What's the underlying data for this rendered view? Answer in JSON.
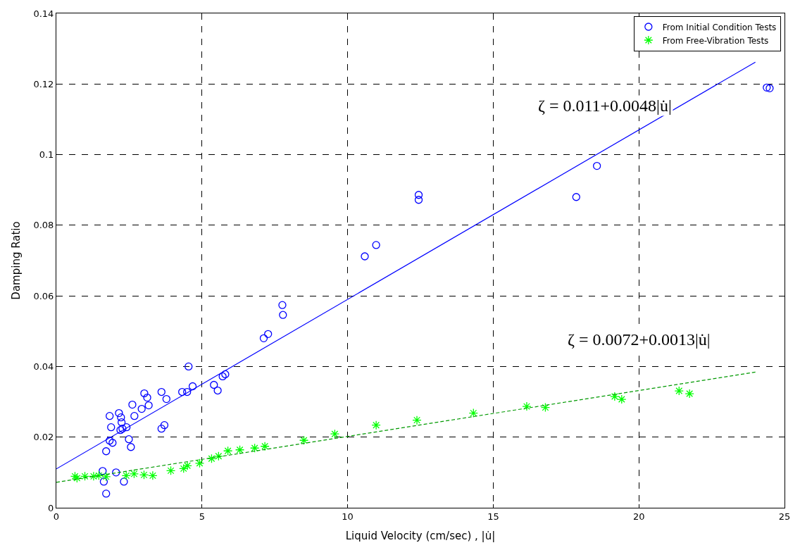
{
  "chart_data": {
    "type": "scatter",
    "xlabel": "Liquid Velocity (cm/sec) , |u̇|",
    "ylabel": "Damping Ratio",
    "xlim": [
      0,
      25
    ],
    "xticks": [
      0,
      5,
      10,
      15,
      20,
      25
    ],
    "ylim": [
      0,
      0.14
    ],
    "yticks": [
      0,
      0.02,
      0.04,
      0.06,
      0.08,
      0.1,
      0.12,
      0.14
    ],
    "grid": true,
    "legend": "top right",
    "annotations": [
      "ζ = 0.011+0.0048|u̇|",
      "ζ = 0.0072+0.0013|u̇|"
    ],
    "series": [
      {
        "name": "From Initial Condition Tests",
        "color": "#0000ff",
        "marker": "circle",
        "x": [
          1.59,
          1.63,
          1.71,
          1.71,
          1.83,
          1.83,
          1.88,
          1.93,
          2.05,
          2.15,
          2.2,
          2.22,
          2.24,
          2.27,
          2.32,
          2.41,
          2.49,
          2.56,
          2.61,
          2.68,
          2.93,
          3.02,
          3.12,
          3.17,
          3.61,
          3.61,
          3.71,
          3.78,
          4.32,
          4.49,
          4.54,
          4.68,
          5.41,
          5.54,
          5.71,
          5.8,
          7.12,
          7.27,
          7.76,
          7.78,
          10.59,
          10.98,
          12.44,
          12.44,
          17.85,
          18.56,
          24.39,
          24.49
        ],
        "values": [
          0.0104,
          0.0074,
          0.004,
          0.016,
          0.019,
          0.026,
          0.0228,
          0.0184,
          0.01,
          0.0268,
          0.022,
          0.0256,
          0.0242,
          0.0224,
          0.0074,
          0.0228,
          0.0194,
          0.0172,
          0.0292,
          0.026,
          0.028,
          0.0324,
          0.0312,
          0.029,
          0.0328,
          0.0224,
          0.0234,
          0.0308,
          0.0328,
          0.0328,
          0.04,
          0.0344,
          0.0348,
          0.0332,
          0.0372,
          0.0378,
          0.048,
          0.0492,
          0.0574,
          0.0546,
          0.0712,
          0.0744,
          0.0886,
          0.0872,
          0.088,
          0.0968,
          0.119,
          0.1188
        ]
      },
      {
        "name": "From Free-Vibration Tests",
        "color": "#00ff00",
        "marker": "cross",
        "x": [
          0.64,
          0.71,
          0.98,
          1.28,
          1.46,
          1.71,
          2.4,
          2.67,
          3.01,
          3.31,
          3.93,
          4.37,
          4.5,
          4.92,
          5.33,
          5.57,
          5.89,
          6.3,
          6.81,
          7.16,
          8.5,
          9.56,
          10.98,
          12.38,
          14.32,
          16.15,
          16.79,
          19.17,
          19.41,
          21.38,
          21.74
        ],
        "values": [
          0.0089,
          0.0084,
          0.0089,
          0.0089,
          0.0091,
          0.0088,
          0.0091,
          0.0096,
          0.0093,
          0.0091,
          0.0105,
          0.0111,
          0.0119,
          0.0126,
          0.0139,
          0.0146,
          0.0161,
          0.0164,
          0.0169,
          0.0174,
          0.0191,
          0.0209,
          0.0234,
          0.0248,
          0.0268,
          0.0287,
          0.0284,
          0.0315,
          0.0307,
          0.0331,
          0.0323
        ]
      },
      {
        "type": "line",
        "color": "#0000ff",
        "line_style": "solid",
        "x": [
          0,
          24
        ],
        "values": [
          0.011,
          0.1262
        ]
      },
      {
        "type": "line",
        "color": "#009900",
        "line_style": "dashed",
        "x": [
          0,
          24
        ],
        "values": [
          0.0072,
          0.0384
        ]
      }
    ]
  }
}
